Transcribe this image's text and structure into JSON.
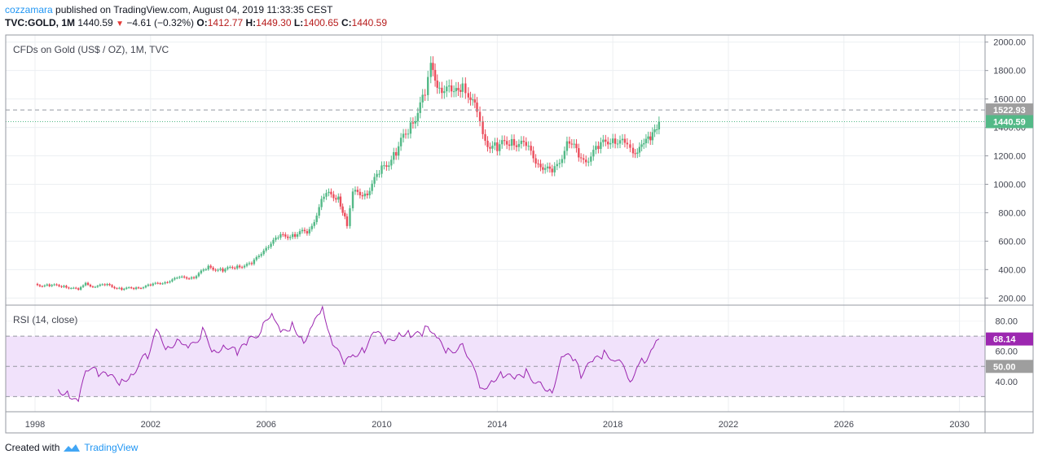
{
  "header": {
    "author": "cozzamara",
    "published_text": "published on TradingView.com, August 04, 2019 11:33:35 CEST",
    "symbol": "TVC:GOLD, 1M",
    "last": "1440.59",
    "change": "−4.61 (−0.32%)",
    "open_label": "O:",
    "open": "1412.77",
    "high_label": "H:",
    "high": "1449.30",
    "low_label": "L:",
    "low": "1400.65",
    "close_label": "C:",
    "close": "1440.59"
  },
  "footer": {
    "created_with": "Created with",
    "brand": "TradingView"
  },
  "colors": {
    "up": "#53b987",
    "down": "#eb4d5c",
    "rsi_line": "#9c27b0",
    "rsi_band": "#f1e2fb",
    "price_tag": "#53b987",
    "gray_tag": "#9e9e9e",
    "rsi_tag": "#9c27b0"
  },
  "chart_data": [
    {
      "type": "candlestick",
      "title": "CFDs on Gold (US$ / OZ), 1M, TVC",
      "interval": "1M",
      "ylim": [
        150,
        2050
      ],
      "y_ticks": [
        "200.00",
        "400.00",
        "600.00",
        "800.00",
        "1000.00",
        "1200.00",
        "1400.00",
        "1600.00",
        "1800.00",
        "2000.00"
      ],
      "x_ticks": [
        "1998",
        "2002",
        "2006",
        "2010",
        "2014",
        "2018",
        "2022",
        "2026",
        "2030"
      ],
      "x_range": [
        1998,
        2031.9
      ],
      "last_price": "1440.59",
      "level_line": "1522.93",
      "closes": [
        {
          "t": 1998.0,
          "c": 292
        },
        {
          "t": 1998.5,
          "c": 288
        },
        {
          "t": 1999.0,
          "c": 286
        },
        {
          "t": 1999.5,
          "c": 255
        },
        {
          "t": 1999.75,
          "c": 300
        },
        {
          "t": 2000.0,
          "c": 285
        },
        {
          "t": 2000.5,
          "c": 290
        },
        {
          "t": 2001.0,
          "c": 265
        },
        {
          "t": 2001.5,
          "c": 270
        },
        {
          "t": 2002.0,
          "c": 290
        },
        {
          "t": 2002.5,
          "c": 315
        },
        {
          "t": 2003.0,
          "c": 340
        },
        {
          "t": 2003.5,
          "c": 350
        },
        {
          "t": 2004.0,
          "c": 415
        },
        {
          "t": 2004.5,
          "c": 395
        },
        {
          "t": 2005.0,
          "c": 425
        },
        {
          "t": 2005.5,
          "c": 435
        },
        {
          "t": 2006.0,
          "c": 565
        },
        {
          "t": 2006.5,
          "c": 630
        },
        {
          "t": 2007.0,
          "c": 650
        },
        {
          "t": 2007.5,
          "c": 670
        },
        {
          "t": 2008.0,
          "c": 920
        },
        {
          "t": 2008.5,
          "c": 920
        },
        {
          "t": 2008.8,
          "c": 720
        },
        {
          "t": 2009.0,
          "c": 930
        },
        {
          "t": 2009.5,
          "c": 950
        },
        {
          "t": 2010.0,
          "c": 1100
        },
        {
          "t": 2010.5,
          "c": 1230
        },
        {
          "t": 2011.0,
          "c": 1420
        },
        {
          "t": 2011.5,
          "c": 1620
        },
        {
          "t": 2011.7,
          "c": 1800
        },
        {
          "t": 2012.0,
          "c": 1710
        },
        {
          "t": 2012.5,
          "c": 1610
        },
        {
          "t": 2012.8,
          "c": 1720
        },
        {
          "t": 2013.0,
          "c": 1660
        },
        {
          "t": 2013.3,
          "c": 1480
        },
        {
          "t": 2013.5,
          "c": 1320
        },
        {
          "t": 2014.0,
          "c": 1250
        },
        {
          "t": 2014.5,
          "c": 1320
        },
        {
          "t": 2015.0,
          "c": 1250
        },
        {
          "t": 2015.5,
          "c": 1150
        },
        {
          "t": 2015.9,
          "c": 1060
        },
        {
          "t": 2016.5,
          "c": 1320
        },
        {
          "t": 2016.9,
          "c": 1150
        },
        {
          "t": 2017.5,
          "c": 1250
        },
        {
          "t": 2018.0,
          "c": 1340
        },
        {
          "t": 2018.5,
          "c": 1250
        },
        {
          "t": 2018.7,
          "c": 1195
        },
        {
          "t": 2019.0,
          "c": 1320
        },
        {
          "t": 2019.3,
          "c": 1290
        },
        {
          "t": 2019.6,
          "c": 1440.59
        }
      ]
    },
    {
      "type": "line",
      "title": "RSI (14, close)",
      "ylim": [
        20,
        90
      ],
      "y_ticks": [
        "40.00",
        "60.00",
        "80.00"
      ],
      "bands": [
        30,
        50,
        70
      ],
      "last_value": "68.14",
      "mid_value": "50.00",
      "series": [
        {
          "t": 1998.8,
          "v": 35
        },
        {
          "t": 1999.2,
          "v": 32
        },
        {
          "t": 1999.5,
          "v": 24
        },
        {
          "t": 1999.75,
          "v": 50
        },
        {
          "t": 2000.2,
          "v": 45
        },
        {
          "t": 2000.6,
          "v": 42
        },
        {
          "t": 2001.0,
          "v": 40
        },
        {
          "t": 2001.4,
          "v": 47
        },
        {
          "t": 2001.9,
          "v": 58
        },
        {
          "t": 2002.2,
          "v": 72
        },
        {
          "t": 2002.6,
          "v": 62
        },
        {
          "t": 2003.0,
          "v": 70
        },
        {
          "t": 2003.3,
          "v": 60
        },
        {
          "t": 2003.8,
          "v": 73
        },
        {
          "t": 2004.2,
          "v": 60
        },
        {
          "t": 2004.6,
          "v": 65
        },
        {
          "t": 2005.0,
          "v": 58
        },
        {
          "t": 2005.4,
          "v": 66
        },
        {
          "t": 2005.9,
          "v": 76
        },
        {
          "t": 2006.2,
          "v": 88
        },
        {
          "t": 2006.5,
          "v": 70
        },
        {
          "t": 2006.9,
          "v": 78
        },
        {
          "t": 2007.3,
          "v": 68
        },
        {
          "t": 2007.6,
          "v": 75
        },
        {
          "t": 2007.95,
          "v": 89
        },
        {
          "t": 2008.3,
          "v": 67
        },
        {
          "t": 2008.7,
          "v": 50
        },
        {
          "t": 2009.0,
          "v": 58
        },
        {
          "t": 2009.4,
          "v": 62
        },
        {
          "t": 2009.8,
          "v": 72
        },
        {
          "t": 2010.2,
          "v": 65
        },
        {
          "t": 2010.6,
          "v": 73
        },
        {
          "t": 2011.0,
          "v": 72
        },
        {
          "t": 2011.4,
          "v": 69
        },
        {
          "t": 2011.6,
          "v": 79
        },
        {
          "t": 2011.9,
          "v": 67
        },
        {
          "t": 2012.3,
          "v": 60
        },
        {
          "t": 2012.8,
          "v": 64
        },
        {
          "t": 2013.1,
          "v": 55
        },
        {
          "t": 2013.4,
          "v": 33
        },
        {
          "t": 2013.8,
          "v": 42
        },
        {
          "t": 2014.2,
          "v": 45
        },
        {
          "t": 2014.6,
          "v": 40
        },
        {
          "t": 2015.0,
          "v": 46
        },
        {
          "t": 2015.5,
          "v": 38
        },
        {
          "t": 2015.9,
          "v": 35
        },
        {
          "t": 2016.3,
          "v": 58
        },
        {
          "t": 2016.7,
          "v": 52
        },
        {
          "t": 2016.9,
          "v": 45
        },
        {
          "t": 2017.3,
          "v": 52
        },
        {
          "t": 2017.7,
          "v": 58
        },
        {
          "t": 2018.0,
          "v": 57
        },
        {
          "t": 2018.3,
          "v": 50
        },
        {
          "t": 2018.6,
          "v": 42
        },
        {
          "t": 2018.9,
          "v": 50
        },
        {
          "t": 2019.1,
          "v": 55
        },
        {
          "t": 2019.4,
          "v": 60
        },
        {
          "t": 2019.6,
          "v": 68.14
        }
      ]
    }
  ]
}
